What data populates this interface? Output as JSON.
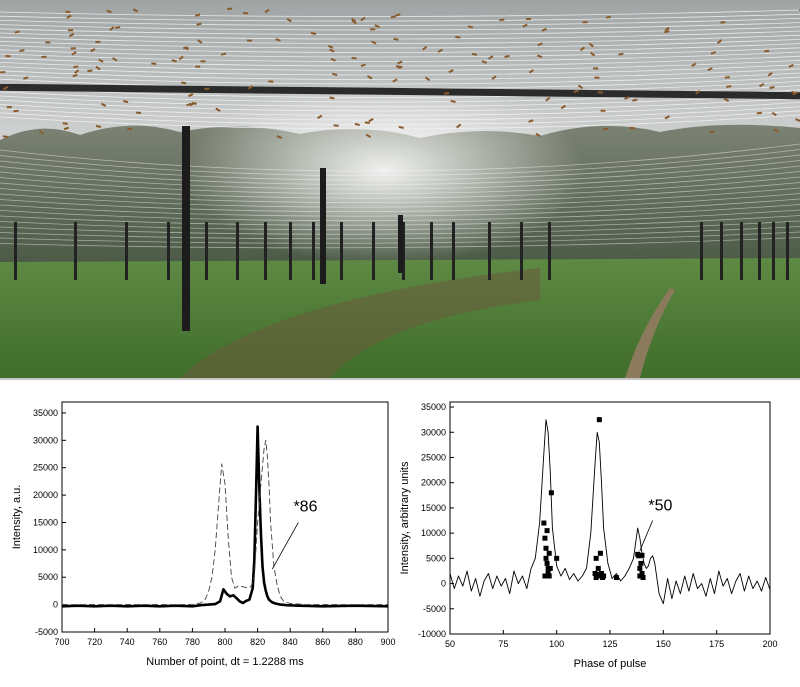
{
  "photo": {
    "description_icon": "radio-antenna-field-photo-icon",
    "colors": {
      "sky": "#c9cccd",
      "forest": "#5d6a56",
      "grass": "#4f7a3a",
      "wires": "#f2f2f2",
      "pole": "#1e1e1e"
    }
  },
  "chart_data": [
    {
      "type": "line",
      "xlabel": "Number of point, dt = 1.2288 ms",
      "ylabel": "Intensity, a.u.",
      "xlim": [
        700,
        900
      ],
      "ylim": [
        -5000,
        37000
      ],
      "xticks": [
        700,
        720,
        740,
        760,
        780,
        800,
        820,
        840,
        860,
        880,
        900
      ],
      "yticks": [
        -5000,
        0,
        5000,
        10000,
        15000,
        20000,
        25000,
        30000,
        35000
      ],
      "annotation": "*86",
      "grid": false,
      "series": [
        {
          "style": "solid-bold",
          "x": [
            700,
            710,
            720,
            730,
            740,
            750,
            760,
            770,
            780,
            785,
            790,
            794,
            797,
            799,
            801,
            803,
            805,
            807,
            809,
            811,
            813,
            815,
            817,
            818,
            819,
            820,
            821,
            822,
            823,
            824,
            825,
            826,
            827,
            829,
            831,
            834,
            838,
            845,
            860,
            880,
            900
          ],
          "y": [
            -300,
            -200,
            -300,
            -200,
            -300,
            -200,
            -300,
            -200,
            -300,
            -100,
            0,
            100,
            600,
            2800,
            2000,
            1500,
            1700,
            1200,
            600,
            300,
            700,
            900,
            3000,
            8000,
            20000,
            32500,
            22000,
            13000,
            7000,
            4000,
            2500,
            1500,
            900,
            400,
            200,
            0,
            -100,
            -200,
            -300,
            -200,
            -300
          ]
        },
        {
          "style": "dashed",
          "x": [
            700,
            760,
            780,
            785,
            788,
            790,
            792,
            794,
            796,
            798,
            800,
            802,
            804,
            806,
            808,
            810,
            812,
            814,
            816,
            818,
            820,
            822,
            824,
            825,
            826,
            827,
            828,
            830,
            832,
            834,
            836,
            840,
            850,
            870,
            900
          ],
          "y": [
            0,
            0,
            0,
            300,
            1000,
            2500,
            5000,
            10000,
            18000,
            25700,
            22000,
            12000,
            5000,
            3000,
            3400,
            3300,
            3200,
            3000,
            3300,
            5000,
            15000,
            22000,
            28500,
            30000,
            27000,
            22000,
            15000,
            7000,
            3500,
            1500,
            600,
            200,
            0,
            0,
            0
          ]
        }
      ]
    },
    {
      "type": "line",
      "xlabel": "Phase of pulse",
      "ylabel": "Intensity, arbitrary units",
      "xlim": [
        50,
        200
      ],
      "ylim": [
        -10000,
        36000
      ],
      "xticks": [
        50,
        75,
        100,
        125,
        150,
        175,
        200
      ],
      "yticks": [
        -10000,
        -5000,
        0,
        5000,
        10000,
        15000,
        20000,
        25000,
        30000,
        35000
      ],
      "annotation": "*50",
      "grid": false,
      "series": [
        {
          "style": "solid-thin",
          "x": [
            50,
            52,
            54,
            56,
            58,
            60,
            62,
            64,
            66,
            68,
            70,
            72,
            74,
            76,
            78,
            80,
            82,
            84,
            86,
            88,
            90,
            92,
            94,
            95,
            96,
            97,
            98,
            100,
            102,
            104,
            106,
            108,
            110,
            112,
            114,
            116,
            118,
            119,
            120,
            121,
            122,
            124,
            126,
            128,
            130,
            132,
            134,
            136,
            137,
            138,
            139,
            140,
            141,
            142,
            143,
            144,
            145,
            146,
            148,
            150,
            152,
            154,
            156,
            158,
            160,
            162,
            164,
            166,
            168,
            170,
            172,
            174,
            176,
            178,
            180,
            182,
            184,
            186,
            188,
            190,
            192,
            194,
            196,
            198,
            200
          ],
          "y": [
            2000,
            -1000,
            1500,
            -500,
            2500,
            -1500,
            1000,
            -2500,
            500,
            2000,
            -1000,
            1500,
            -500,
            1000,
            -2000,
            2500,
            0,
            1500,
            -1000,
            3000,
            5000,
            12000,
            26000,
            32500,
            30000,
            22000,
            11000,
            3500,
            1500,
            3000,
            800,
            2000,
            500,
            1500,
            3000,
            10000,
            24000,
            30000,
            28000,
            20000,
            11000,
            4000,
            1000,
            2000,
            500,
            1500,
            3000,
            5000,
            8000,
            11000,
            9000,
            6000,
            4000,
            3000,
            3500,
            5000,
            5500,
            4000,
            -2000,
            -4000,
            1000,
            -3000,
            500,
            -2000,
            1500,
            -1500,
            2000,
            -1000,
            0,
            -2500,
            1000,
            -2000,
            2500,
            -500,
            1000,
            -2000,
            500,
            2000,
            -1500,
            1500,
            -1000,
            500,
            -1500,
            1200,
            -1200
          ]
        }
      ],
      "markers": {
        "x": [
          94,
          94.5,
          95,
          95,
          95.5,
          96,
          96,
          96.5,
          97,
          97.5,
          95.5,
          96.5,
          94.5,
          100,
          118,
          118.5,
          119,
          119.5,
          120,
          120.5,
          121,
          121.5,
          122,
          118.5,
          120,
          121,
          138,
          138.5,
          139,
          139.5,
          140,
          140.5,
          139,
          140,
          128
        ],
        "y": [
          12000,
          9000,
          7000,
          5000,
          4000,
          3000,
          2000,
          1500,
          3000,
          18000,
          10500,
          6000,
          1500,
          5000,
          2000,
          5000,
          1500,
          3000,
          32500,
          6000,
          2000,
          1200,
          1500,
          1200,
          1800,
          1600,
          5800,
          5500,
          1500,
          4000,
          2000,
          1200,
          3000,
          5600,
          1200
        ]
      }
    }
  ]
}
